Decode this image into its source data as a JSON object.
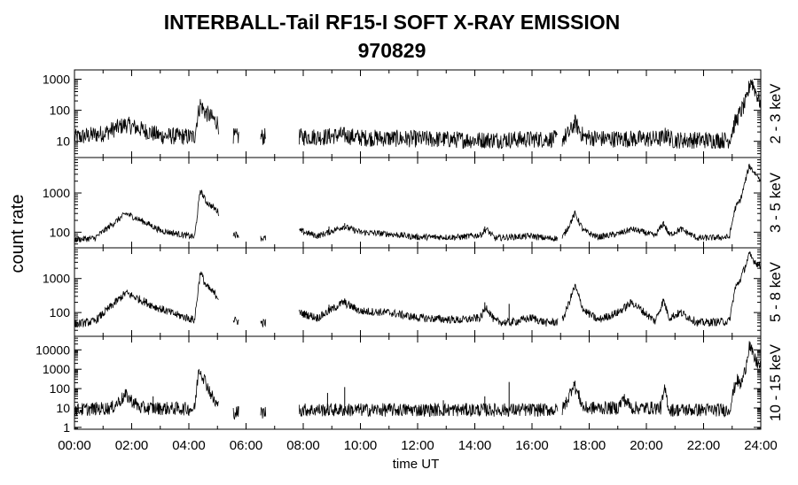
{
  "header": {
    "title": "INTERBALL-Tail RF15-I SOFT X-RAY EMISSION",
    "subtitle": "970829"
  },
  "chart_data": {
    "type": "line",
    "title": "INTERBALL-Tail RF15-I SOFT X-RAY EMISSION",
    "subtitle": "970829",
    "xlabel": "time UT",
    "ylabel": "count rate",
    "xlim": [
      0,
      24
    ],
    "x_ticks": [
      "00:00",
      "02:00",
      "04:00",
      "06:00",
      "08:00",
      "10:00",
      "12:00",
      "14:00",
      "16:00",
      "18:00",
      "20:00",
      "22:00",
      "24:00"
    ],
    "y_scale": "log",
    "grid": false,
    "panels": [
      {
        "name": "2 - 3 keV",
        "ylim": [
          3,
          2000
        ],
        "y_ticks": [
          10,
          100,
          1000
        ],
        "y_tick_labels": [
          "10",
          "100",
          "1000"
        ],
        "data_gaps": [
          [
            5.05,
            5.55
          ],
          [
            5.75,
            6.5
          ],
          [
            6.7,
            7.85
          ],
          [
            16.9,
            17.05
          ]
        ],
        "series": [
          {
            "name": "2 - 3 keV",
            "base": 13,
            "noise": 0.28,
            "points": [
              [
                0,
                13
              ],
              [
                1.0,
                18
              ],
              [
                1.8,
                35
              ],
              [
                2.6,
                20
              ],
              [
                3.0,
                15
              ],
              [
                4.2,
                14
              ],
              [
                4.3,
                60
              ],
              [
                4.4,
                160
              ],
              [
                4.55,
                90
              ],
              [
                5.0,
                40
              ],
              [
                5.05,
                30
              ],
              [
                5.55,
                14
              ],
              [
                5.75,
                14
              ],
              [
                6.5,
                14
              ],
              [
                6.7,
                14
              ],
              [
                7.85,
                14
              ],
              [
                8.8,
                14
              ],
              [
                9.3,
                16
              ],
              [
                10.0,
                13
              ],
              [
                14.0,
                11
              ],
              [
                17.05,
                12
              ],
              [
                17.3,
                18
              ],
              [
                17.5,
                40
              ],
              [
                17.8,
                14
              ],
              [
                18.5,
                12
              ],
              [
                20.5,
                12
              ],
              [
                20.7,
                16
              ],
              [
                20.9,
                11
              ],
              [
                22.9,
                11
              ],
              [
                23.1,
                40
              ],
              [
                23.5,
                200
              ],
              [
                23.65,
                1000
              ],
              [
                24.0,
                160
              ]
            ],
            "spikes": [
              [
                9.4,
                24
              ],
              [
                17.55,
                45
              ],
              [
                20.7,
                22
              ]
            ]
          }
        ]
      },
      {
        "name": "3 - 5 keV",
        "ylim": [
          40,
          8000
        ],
        "y_ticks": [
          100,
          1000
        ],
        "y_tick_labels": [
          "100",
          "1000"
        ],
        "data_gaps": [
          [
            5.05,
            5.55
          ],
          [
            5.75,
            6.5
          ],
          [
            6.7,
            7.85
          ],
          [
            16.9,
            17.05
          ]
        ],
        "series": [
          {
            "name": "3 - 5 keV",
            "base": 70,
            "noise": 0.08,
            "points": [
              [
                0,
                65
              ],
              [
                0.7,
                70
              ],
              [
                1.8,
                300
              ],
              [
                2.6,
                160
              ],
              [
                3.0,
                110
              ],
              [
                4.2,
                75
              ],
              [
                4.4,
                1200
              ],
              [
                4.6,
                600
              ],
              [
                5.0,
                350
              ],
              [
                5.05,
                300
              ],
              [
                5.55,
                90
              ],
              [
                5.75,
                85
              ],
              [
                6.5,
                70
              ],
              [
                6.7,
                70
              ],
              [
                7.85,
                110
              ],
              [
                8.5,
                80
              ],
              [
                8.9,
                100
              ],
              [
                9.4,
                140
              ],
              [
                10.0,
                100
              ],
              [
                11.0,
                90
              ],
              [
                12.0,
                75
              ],
              [
                13.5,
                75
              ],
              [
                14.2,
                85
              ],
              [
                14.4,
                120
              ],
              [
                14.7,
                70
              ],
              [
                15.2,
                75
              ],
              [
                16.0,
                80
              ],
              [
                16.5,
                70
              ],
              [
                17.05,
                70
              ],
              [
                17.3,
                150
              ],
              [
                17.5,
                300
              ],
              [
                17.8,
                110
              ],
              [
                18.3,
                75
              ],
              [
                19.0,
                90
              ],
              [
                19.5,
                120
              ],
              [
                20.0,
                95
              ],
              [
                20.3,
                80
              ],
              [
                20.6,
                170
              ],
              [
                20.8,
                85
              ],
              [
                21.2,
                120
              ],
              [
                21.8,
                70
              ],
              [
                22.9,
                75
              ],
              [
                23.1,
                400
              ],
              [
                23.3,
                700
              ],
              [
                23.6,
                5000
              ],
              [
                23.75,
                3500
              ],
              [
                24.0,
                2200
              ]
            ],
            "spikes": [
              [
                8.9,
                140
              ],
              [
                9.45,
                170
              ],
              [
                14.35,
                140
              ],
              [
                17.5,
                340
              ],
              [
                20.6,
                190
              ]
            ]
          }
        ]
      },
      {
        "name": "5 - 8 keV",
        "ylim": [
          20,
          8000
        ],
        "y_ticks": [
          100,
          1000
        ],
        "y_tick_labels": [
          "100",
          "1000"
        ],
        "data_gaps": [
          [
            5.05,
            5.55
          ],
          [
            5.75,
            6.5
          ],
          [
            6.7,
            7.85
          ],
          [
            16.9,
            17.05
          ]
        ],
        "series": [
          {
            "name": "5 - 8 keV",
            "base": 50,
            "noise": 0.12,
            "points": [
              [
                0,
                45
              ],
              [
                0.7,
                55
              ],
              [
                1.8,
                380
              ],
              [
                2.5,
                200
              ],
              [
                2.8,
                150
              ],
              [
                3.5,
                90
              ],
              [
                4.2,
                60
              ],
              [
                4.4,
                1600
              ],
              [
                4.6,
                600
              ],
              [
                5.0,
                300
              ],
              [
                5.05,
                280
              ],
              [
                5.55,
                60
              ],
              [
                5.75,
                55
              ],
              [
                6.5,
                50
              ],
              [
                6.7,
                50
              ],
              [
                7.85,
                100
              ],
              [
                8.5,
                70
              ],
              [
                8.9,
                110
              ],
              [
                9.4,
                200
              ],
              [
                10.0,
                110
              ],
              [
                11.0,
                100
              ],
              [
                12.0,
                70
              ],
              [
                13.5,
                60
              ],
              [
                14.2,
                70
              ],
              [
                14.4,
                150
              ],
              [
                14.7,
                55
              ],
              [
                15.2,
                50
              ],
              [
                16.0,
                70
              ],
              [
                16.5,
                50
              ],
              [
                17.05,
                55
              ],
              [
                17.3,
                200
              ],
              [
                17.5,
                600
              ],
              [
                17.8,
                120
              ],
              [
                18.3,
                60
              ],
              [
                19.0,
                100
              ],
              [
                19.5,
                200
              ],
              [
                20.0,
                90
              ],
              [
                20.3,
                55
              ],
              [
                20.6,
                230
              ],
              [
                20.8,
                70
              ],
              [
                21.2,
                100
              ],
              [
                21.8,
                50
              ],
              [
                22.9,
                55
              ],
              [
                23.1,
                500
              ],
              [
                23.3,
                1000
              ],
              [
                23.6,
                5000
              ],
              [
                23.75,
                3500
              ],
              [
                24.0,
                2200
              ]
            ],
            "spikes": [
              [
                8.9,
                170
              ],
              [
                9.45,
                260
              ],
              [
                14.35,
                200
              ],
              [
                15.2,
                180
              ],
              [
                17.5,
                650
              ],
              [
                20.6,
                250
              ]
            ]
          }
        ]
      },
      {
        "name": "10 - 15 keV",
        "ylim": [
          0.8,
          50000
        ],
        "y_ticks": [
          1,
          10,
          100,
          1000,
          10000
        ],
        "y_tick_labels": [
          "1",
          "10",
          "100",
          "1000",
          "10000"
        ],
        "data_gaps": [
          [
            5.05,
            5.55
          ],
          [
            5.75,
            6.5
          ],
          [
            6.7,
            7.85
          ],
          [
            16.9,
            17.05
          ]
        ],
        "series": [
          {
            "name": "10 - 15 keV",
            "base": 8,
            "noise": 0.35,
            "points": [
              [
                0,
                8
              ],
              [
                1.3,
                10
              ],
              [
                1.8,
                45
              ],
              [
                2.3,
                10
              ],
              [
                4.2,
                9
              ],
              [
                4.35,
                1200
              ],
              [
                4.55,
                300
              ],
              [
                4.9,
                20
              ],
              [
                5.05,
                12
              ],
              [
                5.55,
                6
              ],
              [
                5.75,
                6
              ],
              [
                6.5,
                6
              ],
              [
                6.7,
                6
              ],
              [
                7.85,
                8
              ],
              [
                17.05,
                8
              ],
              [
                17.3,
                40
              ],
              [
                17.45,
                200
              ],
              [
                17.8,
                10
              ],
              [
                19.0,
                10
              ],
              [
                19.2,
                30
              ],
              [
                19.5,
                10
              ],
              [
                20.5,
                10
              ],
              [
                20.65,
                90
              ],
              [
                20.8,
                8
              ],
              [
                22.9,
                8
              ],
              [
                23.15,
                300
              ],
              [
                23.3,
                150
              ],
              [
                23.45,
                800
              ],
              [
                23.6,
                20000
              ],
              [
                23.75,
                4000
              ],
              [
                24.0,
                1200
              ]
            ],
            "spikes": [
              [
                2.75,
                40
              ],
              [
                8.85,
                60
              ],
              [
                9.45,
                120
              ],
              [
                12.9,
                25
              ],
              [
                14.35,
                40
              ],
              [
                15.2,
                220
              ],
              [
                17.45,
                220
              ],
              [
                19.2,
                40
              ],
              [
                20.65,
                100
              ]
            ]
          }
        ]
      }
    ]
  }
}
